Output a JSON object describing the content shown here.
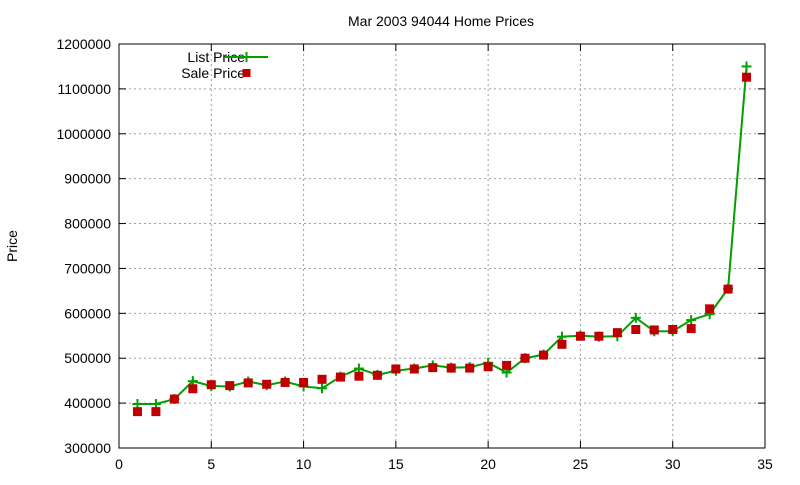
{
  "chart_data": {
    "type": "line",
    "title": "Mar 2003 94044 Home Prices",
    "xlabel": "",
    "ylabel": "Price",
    "xlim": [
      0,
      35
    ],
    "ylim": [
      300000,
      1200000
    ],
    "x_ticks": [
      "0",
      "5",
      "10",
      "15",
      "20",
      "25",
      "30",
      "35"
    ],
    "y_ticks": [
      "300000",
      "400000",
      "500000",
      "600000",
      "700000",
      "800000",
      "900000",
      "1000000",
      "1100000",
      "1200000"
    ],
    "grid": true,
    "legend_position": "top-left",
    "x": [
      1,
      2,
      3,
      4,
      5,
      6,
      7,
      8,
      9,
      10,
      11,
      12,
      13,
      14,
      15,
      16,
      17,
      18,
      19,
      20,
      21,
      22,
      23,
      24,
      25,
      26,
      27,
      28,
      29,
      30,
      31,
      32,
      33,
      34
    ],
    "series": [
      {
        "name": "List Price",
        "style": "line+plus",
        "color": "#00a000",
        "values": [
          398000,
          398000,
          409000,
          449000,
          438000,
          437000,
          448000,
          440000,
          448000,
          437000,
          433000,
          459000,
          477000,
          463000,
          472000,
          477000,
          484000,
          479000,
          480000,
          490000,
          468000,
          500000,
          508000,
          548000,
          550000,
          548000,
          549000,
          590000,
          560000,
          560000,
          585000,
          598000,
          655000,
          1150000
        ]
      },
      {
        "name": "Sale Price",
        "style": "square",
        "color": "#c00000",
        "values": [
          381000,
          381000,
          409000,
          432000,
          441000,
          439000,
          445000,
          442000,
          446000,
          446000,
          453000,
          458000,
          460000,
          462000,
          476000,
          476000,
          479000,
          478000,
          478000,
          481000,
          484000,
          500000,
          507000,
          531000,
          549000,
          549000,
          557000,
          564000,
          563000,
          564000,
          566000,
          610000,
          654000,
          1126000
        ]
      }
    ]
  }
}
